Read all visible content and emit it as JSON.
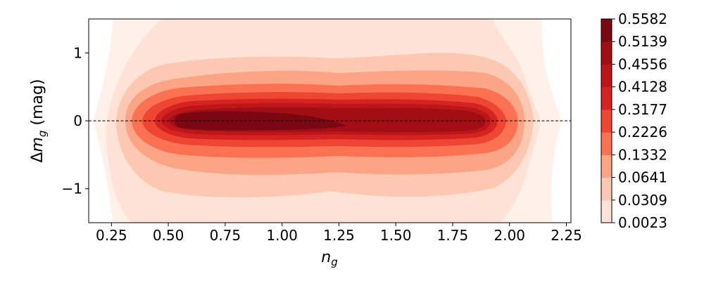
{
  "chart_data": {
    "type": "contourf",
    "xlabel_base": "n",
    "xlabel_sub": "g",
    "ylabel_delta": "Δ",
    "ylabel_base": "m",
    "ylabel_sub": "g",
    "ylabel_unit": " (mag)",
    "xlim": [
      0.15,
      2.27
    ],
    "ylim": [
      -1.5,
      1.5
    ],
    "x_ticks": [
      0.25,
      0.5,
      0.75,
      1.0,
      1.25,
      1.5,
      1.75,
      2.0,
      2.25
    ],
    "x_tick_labels": [
      "0.25",
      "0.50",
      "0.75",
      "1.00",
      "1.25",
      "1.50",
      "1.75",
      "2.00",
      "2.25"
    ],
    "y_ticks": [
      1,
      0,
      -1
    ],
    "y_tick_labels": [
      "1",
      "0",
      "−1"
    ],
    "reference_line": {
      "y": 0,
      "style": "dashed",
      "color": "#000000"
    },
    "colormap": "Reds",
    "levels": [
      0.0023,
      0.0309,
      0.0641,
      0.1332,
      0.2226,
      0.3177,
      0.4128,
      0.4556,
      0.5139,
      0.5582
    ],
    "colorbar_labels": [
      "0.5582",
      "0.5139",
      "0.4556",
      "0.4128",
      "0.3177",
      "0.2226",
      "0.1332",
      "0.0641",
      "0.0309",
      "0.0023"
    ],
    "level_colors": [
      "#fff0e9",
      "#fee2d5",
      "#fcc8b1",
      "#fca486",
      "#fb7252",
      "#ef4533",
      "#d42321",
      "#bc151a",
      "#a10f15",
      "#7a0711"
    ]
  }
}
